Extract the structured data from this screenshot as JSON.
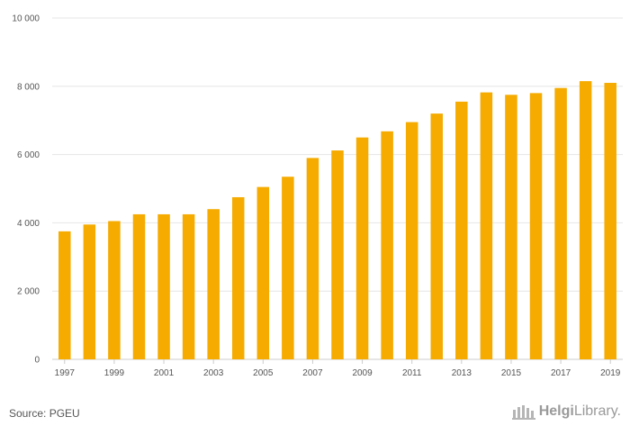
{
  "chart_data": {
    "type": "bar",
    "title": "",
    "xlabel": "",
    "ylabel": "",
    "ylim": [
      0,
      10000
    ],
    "y_ticks": [
      "0",
      "2 000",
      "4 000",
      "6 000",
      "8 000",
      "10 000"
    ],
    "y_tick_values": [
      0,
      2000,
      4000,
      6000,
      8000,
      10000
    ],
    "x_tick_labels": [
      "1997",
      "1999",
      "2001",
      "2003",
      "2005",
      "2007",
      "2009",
      "2011",
      "2013",
      "2015",
      "2017",
      "2019"
    ],
    "categories": [
      "1997",
      "1998",
      "1999",
      "2000",
      "2001",
      "2002",
      "2003",
      "2004",
      "2005",
      "2006",
      "2007",
      "2008",
      "2009",
      "2010",
      "2011",
      "2012",
      "2013",
      "2014",
      "2015",
      "2016",
      "2017",
      "2018",
      "2019"
    ],
    "values": [
      3750,
      3950,
      4050,
      4250,
      4250,
      4250,
      4400,
      4750,
      5050,
      5350,
      5900,
      6120,
      6500,
      6680,
      6950,
      7200,
      7550,
      7820,
      7750,
      7800,
      7950,
      8150,
      8100
    ],
    "bar_color": "#f5ab00",
    "grid": true,
    "grid_color": "#e6e6e6"
  },
  "footer": {
    "source": "Source: PGEU",
    "logo_part1": "Helgi",
    "logo_part2": "Library."
  }
}
